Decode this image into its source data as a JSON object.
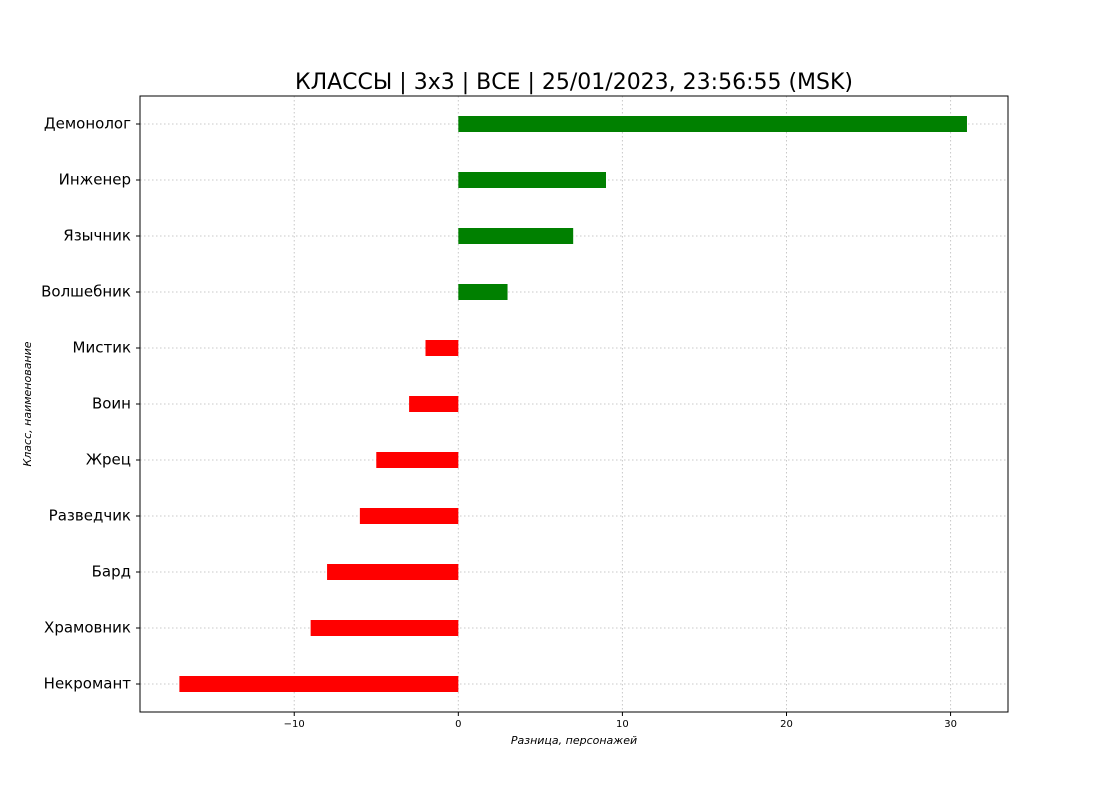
{
  "chart_data": {
    "type": "barh",
    "title": "КЛАССЫ | 3x3 | ВСЕ | 25/01/2023, 23:56:55 (MSK)",
    "xlabel": "Разница, персонажей",
    "ylabel": "Класс, наименование",
    "categories": [
      "Демонолог",
      "Инженер",
      "Язычник",
      "Волшебник",
      "Мистик",
      "Воин",
      "Жрец",
      "Разведчик",
      "Бард",
      "Храмовник",
      "Некромант"
    ],
    "values": [
      31,
      9,
      7,
      3,
      -2,
      -3,
      -5,
      -6,
      -8,
      -9,
      -17
    ],
    "colors": [
      "#008000",
      "#008000",
      "#008000",
      "#008000",
      "#ff0000",
      "#ff0000",
      "#ff0000",
      "#ff0000",
      "#ff0000",
      "#ff0000",
      "#ff0000"
    ],
    "xlim": [
      -19.4,
      33.5
    ],
    "xticks": [
      {
        "value": -10,
        "label": "−10"
      },
      0,
      10,
      20,
      30
    ],
    "grid": true
  }
}
